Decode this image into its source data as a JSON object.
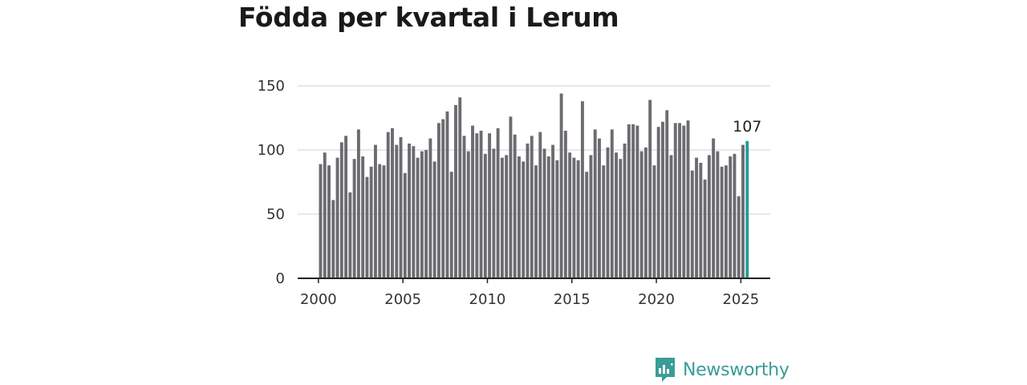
{
  "chart_data": {
    "type": "bar",
    "title": "Födda per kvartal i Lerum",
    "xlabel": "",
    "ylabel": "",
    "ylim": [
      0,
      150
    ],
    "yticks": [
      "0",
      "50",
      "100",
      "150"
    ],
    "xticks": [
      "2000",
      "2005",
      "2010",
      "2015",
      "2020",
      "2025"
    ],
    "x_start": "2000 Q1",
    "values": [
      89,
      98,
      88,
      61,
      94,
      106,
      111,
      67,
      93,
      116,
      95,
      79,
      87,
      104,
      89,
      88,
      114,
      117,
      104,
      110,
      82,
      105,
      103,
      94,
      99,
      100,
      109,
      91,
      121,
      124,
      130,
      83,
      135,
      141,
      111,
      99,
      119,
      113,
      115,
      97,
      113,
      101,
      117,
      94,
      96,
      126,
      112,
      95,
      91,
      105,
      111,
      88,
      114,
      101,
      95,
      104,
      92,
      144,
      115,
      98,
      94,
      92,
      138,
      83,
      96,
      116,
      109,
      88,
      102,
      116,
      98,
      93,
      105,
      120,
      120,
      119,
      99,
      102,
      139,
      88,
      118,
      122,
      131,
      96,
      121,
      121,
      119,
      123,
      84,
      94,
      90,
      77,
      96,
      109,
      99,
      87,
      88,
      95,
      97,
      64,
      104,
      107
    ],
    "highlight_label": "107",
    "bar_color": "#6b6b70",
    "highlight_color": "#1f9e96",
    "grid": true
  },
  "brand": {
    "name": "Newsworthy",
    "icon": "chart-bubble-icon",
    "color": "#3a9c96"
  }
}
